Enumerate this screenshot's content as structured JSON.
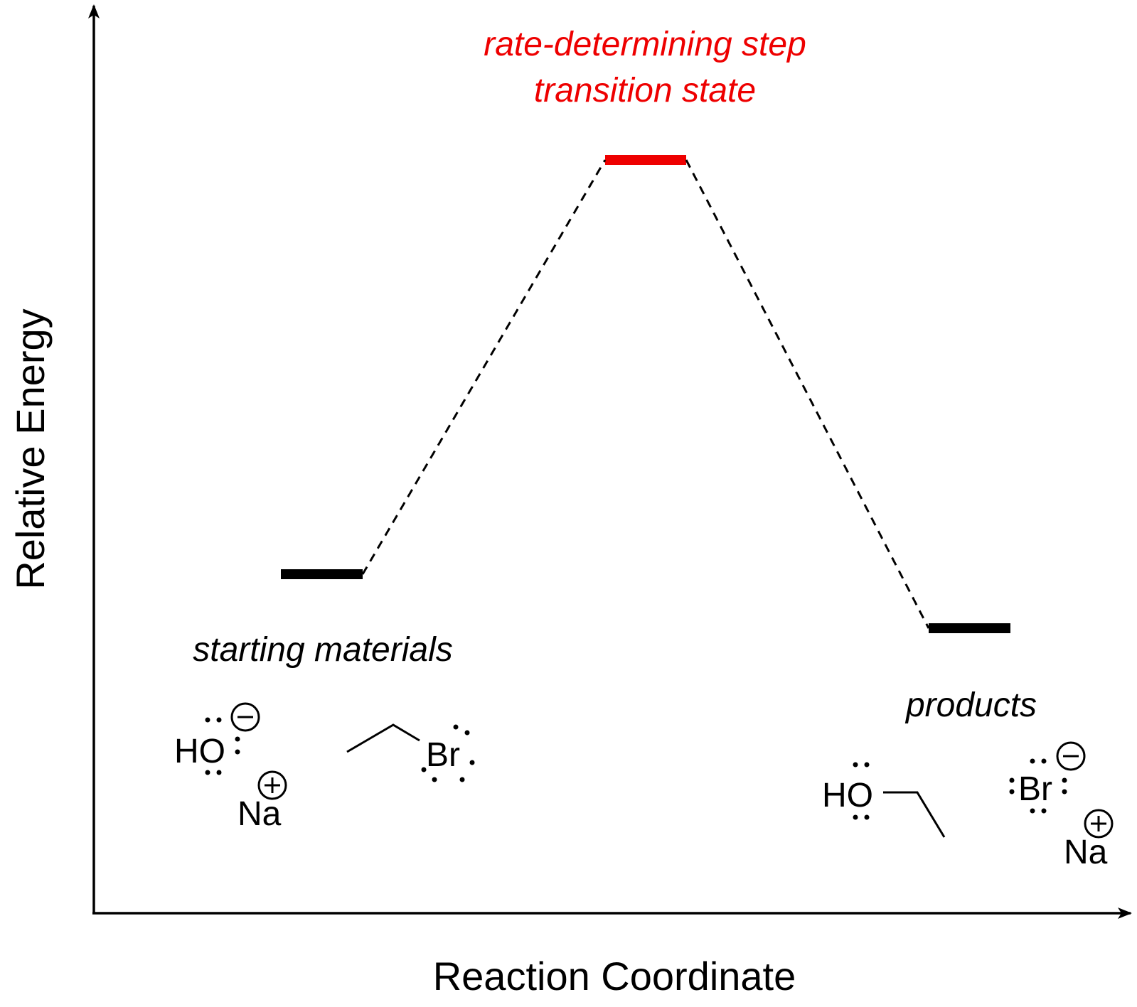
{
  "axes": {
    "y_label": "Relative Energy",
    "x_label": "Reaction Coordinate"
  },
  "labels": {
    "transition_state_line1": "rate-determining step",
    "transition_state_line2": "transition state",
    "starting_materials": "starting materials",
    "products": "products"
  },
  "molecules": {
    "hydroxide_symbol": "HO",
    "sodium_symbol": "Na",
    "bromine_symbol": "Br",
    "ethanol_symbol": "HO",
    "bromide_symbol": "Br",
    "sodium_product_symbol": "Na"
  },
  "colors": {
    "highlight": "#ee0000",
    "line": "#000000"
  }
}
